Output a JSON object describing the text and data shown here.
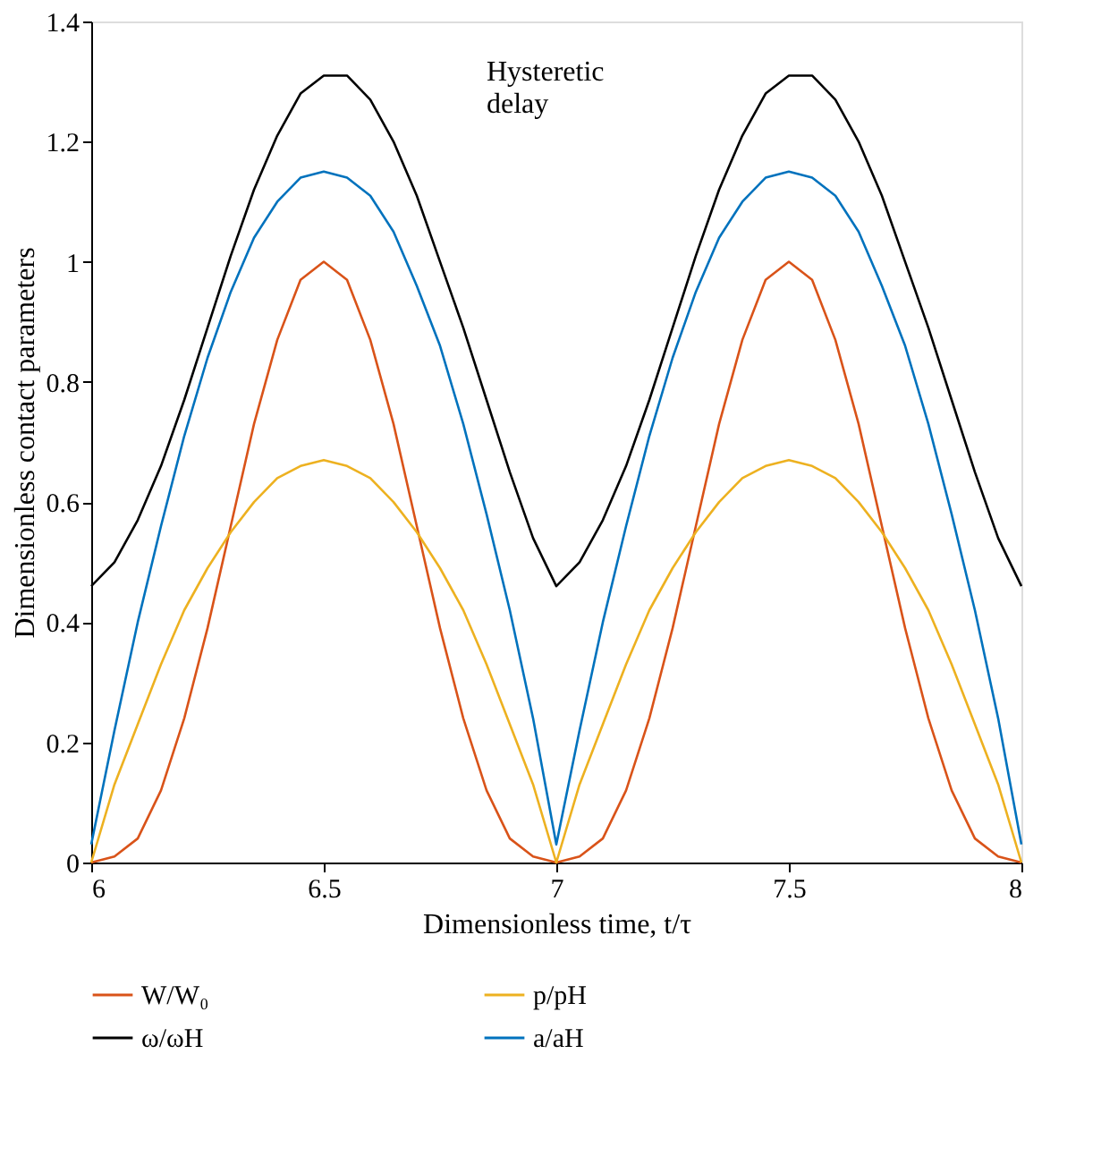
{
  "chart_data": {
    "type": "line",
    "xlabel": "Dimensionless time, t/τ",
    "ylabel": "Dimensionless contact parameters",
    "x": [
      6,
      6.05,
      6.1,
      6.15,
      6.2,
      6.25,
      6.3,
      6.35,
      6.4,
      6.45,
      6.5,
      6.55,
      6.6,
      6.65,
      6.7,
      6.75,
      6.8,
      6.85,
      6.9,
      6.95,
      7,
      7.05,
      7.1,
      7.15,
      7.2,
      7.25,
      7.3,
      7.35,
      7.4,
      7.45,
      7.5,
      7.55,
      7.6,
      7.65,
      7.7,
      7.75,
      7.8,
      7.85,
      7.9,
      7.95,
      8
    ],
    "series": [
      {
        "name": "W/W₀",
        "color": "#d95319",
        "values": [
          0,
          0.01,
          0.04,
          0.12,
          0.24,
          0.39,
          0.56,
          0.73,
          0.87,
          0.97,
          1,
          0.97,
          0.87,
          0.73,
          0.56,
          0.39,
          0.24,
          0.12,
          0.04,
          0.01,
          0,
          0.01,
          0.04,
          0.12,
          0.24,
          0.39,
          0.56,
          0.73,
          0.87,
          0.97,
          1,
          0.97,
          0.87,
          0.73,
          0.56,
          0.39,
          0.24,
          0.12,
          0.04,
          0.01,
          0
        ]
      },
      {
        "name": "p/pH",
        "color": "#edb120",
        "values": [
          0,
          0.13,
          0.23,
          0.33,
          0.42,
          0.49,
          0.55,
          0.6,
          0.64,
          0.66,
          0.67,
          0.66,
          0.64,
          0.6,
          0.55,
          0.49,
          0.42,
          0.33,
          0.23,
          0.13,
          0,
          0.13,
          0.23,
          0.33,
          0.42,
          0.49,
          0.55,
          0.6,
          0.64,
          0.66,
          0.67,
          0.66,
          0.64,
          0.6,
          0.55,
          0.49,
          0.42,
          0.33,
          0.23,
          0.13,
          0
        ]
      },
      {
        "name": "ω/ωH",
        "color": "#000000",
        "values": [
          0.46,
          0.5,
          0.57,
          0.66,
          0.77,
          0.89,
          1.01,
          1.12,
          1.21,
          1.28,
          1.31,
          1.31,
          1.27,
          1.2,
          1.11,
          1,
          0.89,
          0.77,
          0.65,
          0.54,
          0.46,
          0.5,
          0.57,
          0.66,
          0.77,
          0.89,
          1.01,
          1.12,
          1.21,
          1.28,
          1.31,
          1.31,
          1.27,
          1.2,
          1.11,
          1,
          0.89,
          0.77,
          0.65,
          0.54,
          0.46
        ]
      },
      {
        "name": "a/aH",
        "color": "#0072bd",
        "values": [
          0.03,
          0.22,
          0.4,
          0.56,
          0.71,
          0.84,
          0.95,
          1.04,
          1.1,
          1.14,
          1.15,
          1.14,
          1.11,
          1.05,
          0.96,
          0.86,
          0.73,
          0.58,
          0.42,
          0.24,
          0.03,
          0.22,
          0.4,
          0.56,
          0.71,
          0.84,
          0.95,
          1.04,
          1.1,
          1.14,
          1.15,
          1.14,
          1.11,
          1.05,
          0.96,
          0.86,
          0.73,
          0.58,
          0.42,
          0.24,
          0.03
        ]
      }
    ],
    "xlim": [
      6,
      8
    ],
    "ylim": [
      0,
      1.4
    ],
    "xticks": [
      6,
      6.5,
      7,
      7.5,
      8
    ],
    "yticks": [
      0,
      0.2,
      0.4,
      0.6,
      0.8,
      1,
      1.2,
      1.4
    ],
    "annotations": [
      "Hysteretic delay"
    ],
    "grid": false,
    "legend": "bottom",
    "marker": "none",
    "line_style": "solid"
  }
}
